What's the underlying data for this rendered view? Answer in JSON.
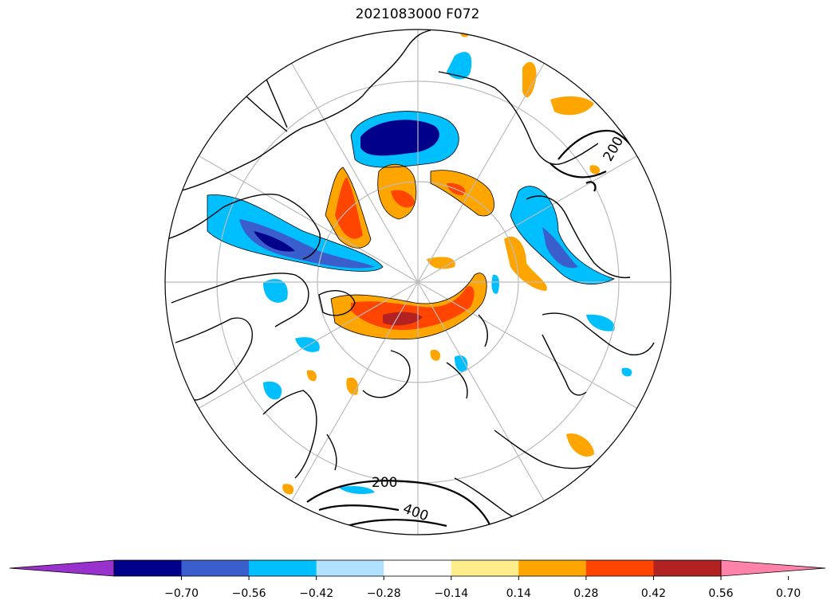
{
  "title": "2021083000 F072",
  "contour_labels": [
    "200",
    "200",
    "400"
  ],
  "colorbar": {
    "ticks": [
      "−0.70",
      "−0.56",
      "−0.42",
      "−0.28",
      "−0.14",
      "0.14",
      "0.28",
      "0.42",
      "0.56",
      "0.70"
    ],
    "colors": [
      "#9932CC",
      "#00008B",
      "#3A5FCD",
      "#00BFFF",
      "#B0E2FF",
      "#FFFFFF",
      "#FFEC8B",
      "#FFA500",
      "#FF4500",
      "#B22222",
      "#FF82AB"
    ],
    "extend": "both"
  },
  "map": {
    "projection": "north-polar-stereographic",
    "gridlines": true
  }
}
